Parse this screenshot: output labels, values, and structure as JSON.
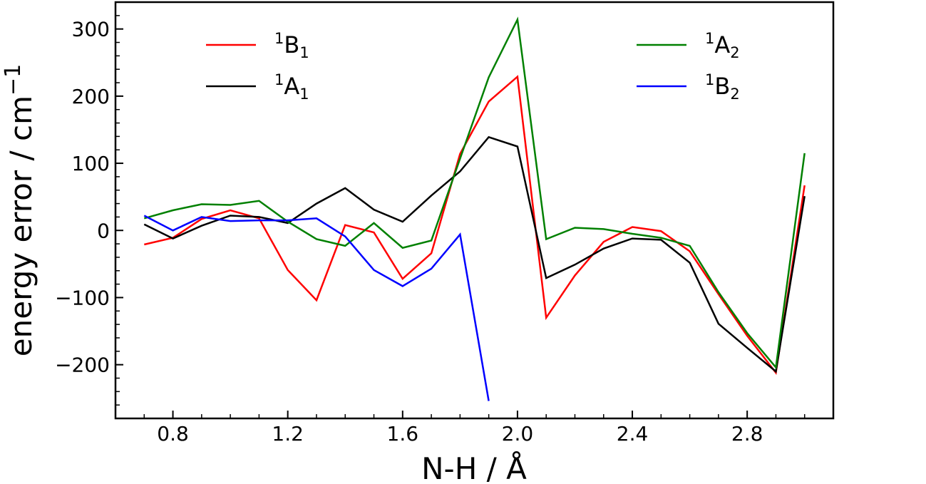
{
  "chart_data": {
    "type": "line",
    "xlabel": "N-H / Å",
    "ylabel": "energy error / cm",
    "ylabel_sup": "−1",
    "xlim": [
      0.6,
      3.1
    ],
    "ylim": [
      -280,
      340
    ],
    "xticks": [
      0.8,
      1.2,
      1.6,
      2.0,
      2.4,
      2.8
    ],
    "xtick_labels": [
      "0.8",
      "1.2",
      "1.6",
      "2.0",
      "2.4",
      "2.8"
    ],
    "yticks": [
      -200,
      -100,
      0,
      100,
      200,
      300
    ],
    "ytick_labels": [
      "−200",
      "−100",
      "0",
      "100",
      "200",
      "300"
    ],
    "grid": false,
    "legend_position": "top",
    "series": [
      {
        "name": "1B1",
        "name_sup": "1",
        "name_base": "B",
        "name_sub": "1",
        "color": "#ff0000",
        "x": [
          0.7,
          0.8,
          0.9,
          1.0,
          1.1,
          1.2,
          1.3,
          1.4,
          1.5,
          1.6,
          1.7,
          1.8,
          1.9,
          2.0,
          2.1,
          2.2,
          2.3,
          2.4,
          2.5,
          2.6,
          2.7,
          2.8,
          2.9,
          3.0
        ],
        "y": [
          -21,
          -11,
          17,
          30,
          18,
          -59,
          -104,
          8,
          -3,
          -72,
          -34,
          114,
          192,
          229,
          -130,
          -67,
          -17,
          5,
          -1,
          -31,
          -95,
          -157,
          -212,
          67
        ]
      },
      {
        "name": "1A1",
        "name_sup": "1",
        "name_base": "A",
        "name_sub": "1",
        "color": "#000000",
        "x": [
          0.7,
          0.8,
          0.9,
          1.0,
          1.1,
          1.2,
          1.3,
          1.4,
          1.5,
          1.6,
          1.7,
          1.8,
          1.9,
          2.0,
          2.1,
          2.2,
          2.3,
          2.4,
          2.5,
          2.6,
          2.7,
          2.8,
          2.9,
          3.0
        ],
        "y": [
          9,
          -12,
          7,
          22,
          20,
          11,
          40,
          63,
          31,
          13,
          52,
          88,
          139,
          125,
          -71,
          -51,
          -27,
          -12,
          -14,
          -48,
          -139,
          -175,
          -210,
          51
        ]
      },
      {
        "name": "1A2",
        "name_sup": "1",
        "name_base": "A",
        "name_sub": "2",
        "color": "#008000",
        "x": [
          0.7,
          0.8,
          0.9,
          1.0,
          1.1,
          1.2,
          1.3,
          1.4,
          1.5,
          1.6,
          1.7,
          1.8,
          1.9,
          2.0,
          2.1,
          2.2,
          2.3,
          2.4,
          2.5,
          2.6,
          2.7,
          2.8,
          2.9,
          3.0
        ],
        "y": [
          18,
          30,
          39,
          38,
          44,
          13,
          -13,
          -23,
          11,
          -26,
          -15,
          107,
          228,
          314,
          -13,
          4,
          2,
          -5,
          -11,
          -23,
          -92,
          -153,
          -204,
          115
        ]
      },
      {
        "name": "1B2",
        "name_sup": "1",
        "name_base": "B",
        "name_sub": "2",
        "color": "#0000ff",
        "x": [
          0.7,
          0.8,
          0.9,
          1.0,
          1.1,
          1.2,
          1.3,
          1.4,
          1.5,
          1.6,
          1.7,
          1.8,
          1.9
        ],
        "y": [
          22,
          0,
          20,
          14,
          15,
          15,
          18,
          -9,
          -59,
          -83,
          -57,
          -6,
          -254
        ]
      }
    ]
  }
}
